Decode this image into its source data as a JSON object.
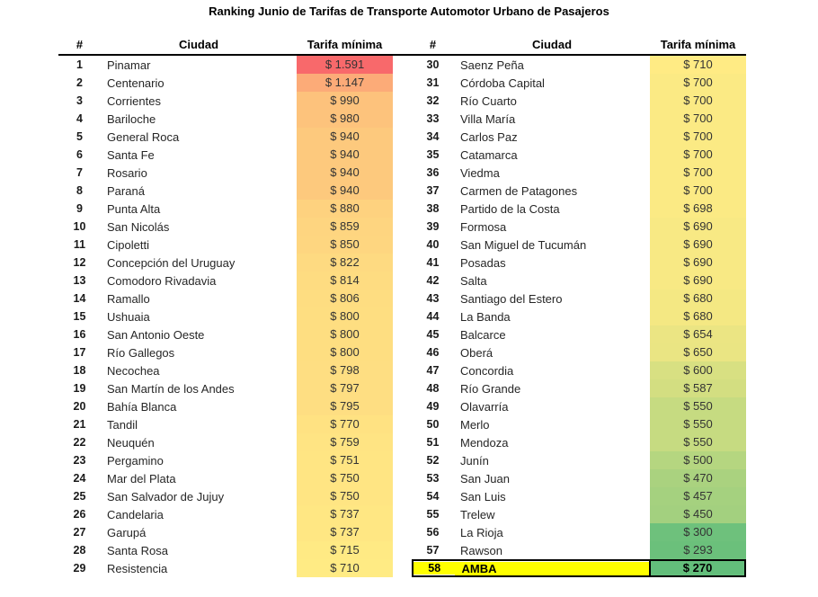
{
  "title": "Ranking Junio de Tarifas de Transporte Automotor Urbano de Pasajeros",
  "chart_data": {
    "type": "table",
    "title": "Ranking Junio de Tarifas de Transporte Automotor Urbano de Pasajeros",
    "columns": [
      "#",
      "Ciudad",
      "Tarifa mínima"
    ],
    "rows_per_column": 29,
    "fare_format": {
      "prefix": "$ ",
      "thousands_separator": "."
    },
    "color_scale": {
      "min_value": 270,
      "mid_value": 710,
      "max_value": 1591,
      "min_color": "#63BE7B",
      "mid_color": "#FFEB84",
      "max_color": "#F8696B"
    },
    "highlight": {
      "rank": 58,
      "city": "AMBA",
      "background": "#FFFF00",
      "border_color": "#000000"
    },
    "rows": [
      {
        "rank": 1,
        "city": "Pinamar",
        "fare": 1591
      },
      {
        "rank": 2,
        "city": "Centenario",
        "fare": 1147
      },
      {
        "rank": 3,
        "city": "Corrientes",
        "fare": 990
      },
      {
        "rank": 4,
        "city": "Bariloche",
        "fare": 980
      },
      {
        "rank": 5,
        "city": "General Roca",
        "fare": 940
      },
      {
        "rank": 6,
        "city": "Santa Fe",
        "fare": 940
      },
      {
        "rank": 7,
        "city": "Rosario",
        "fare": 940
      },
      {
        "rank": 8,
        "city": "Paraná",
        "fare": 940
      },
      {
        "rank": 9,
        "city": "Punta Alta",
        "fare": 880
      },
      {
        "rank": 10,
        "city": "San Nicolás",
        "fare": 859
      },
      {
        "rank": 11,
        "city": "Cipoletti",
        "fare": 850
      },
      {
        "rank": 12,
        "city": "Concepción del Uruguay",
        "fare": 822
      },
      {
        "rank": 13,
        "city": "Comodoro Rivadavia",
        "fare": 814
      },
      {
        "rank": 14,
        "city": "Ramallo",
        "fare": 806
      },
      {
        "rank": 15,
        "city": "Ushuaia",
        "fare": 800
      },
      {
        "rank": 16,
        "city": "San Antonio Oeste",
        "fare": 800
      },
      {
        "rank": 17,
        "city": "Río Gallegos",
        "fare": 800
      },
      {
        "rank": 18,
        "city": "Necochea",
        "fare": 798
      },
      {
        "rank": 19,
        "city": "San Martín de los Andes",
        "fare": 797
      },
      {
        "rank": 20,
        "city": "Bahía Blanca",
        "fare": 795
      },
      {
        "rank": 21,
        "city": "Tandil",
        "fare": 770
      },
      {
        "rank": 22,
        "city": "Neuquén",
        "fare": 759
      },
      {
        "rank": 23,
        "city": "Pergamino",
        "fare": 751
      },
      {
        "rank": 24,
        "city": "Mar del Plata",
        "fare": 750
      },
      {
        "rank": 25,
        "city": "San Salvador de Jujuy",
        "fare": 750
      },
      {
        "rank": 26,
        "city": "Candelaria",
        "fare": 737
      },
      {
        "rank": 27,
        "city": "Garupá",
        "fare": 737
      },
      {
        "rank": 28,
        "city": "Santa Rosa",
        "fare": 715
      },
      {
        "rank": 29,
        "city": "Resistencia",
        "fare": 710
      },
      {
        "rank": 30,
        "city": "Saenz Peña",
        "fare": 710
      },
      {
        "rank": 31,
        "city": "Córdoba Capital",
        "fare": 700
      },
      {
        "rank": 32,
        "city": "Río Cuarto",
        "fare": 700
      },
      {
        "rank": 33,
        "city": "Villa María",
        "fare": 700
      },
      {
        "rank": 34,
        "city": "Carlos Paz",
        "fare": 700
      },
      {
        "rank": 35,
        "city": "Catamarca",
        "fare": 700
      },
      {
        "rank": 36,
        "city": "Viedma",
        "fare": 700
      },
      {
        "rank": 37,
        "city": "Carmen de Patagones",
        "fare": 700
      },
      {
        "rank": 38,
        "city": "Partido de la Costa",
        "fare": 698
      },
      {
        "rank": 39,
        "city": "Formosa",
        "fare": 690
      },
      {
        "rank": 40,
        "city": "San Miguel de Tucumán",
        "fare": 690
      },
      {
        "rank": 41,
        "city": "Posadas",
        "fare": 690
      },
      {
        "rank": 42,
        "city": "Salta",
        "fare": 690
      },
      {
        "rank": 43,
        "city": "Santiago del Estero",
        "fare": 680
      },
      {
        "rank": 44,
        "city": "La Banda",
        "fare": 680
      },
      {
        "rank": 45,
        "city": "Balcarce",
        "fare": 654
      },
      {
        "rank": 46,
        "city": "Oberá",
        "fare": 650
      },
      {
        "rank": 47,
        "city": "Concordia",
        "fare": 600
      },
      {
        "rank": 48,
        "city": "Río Grande",
        "fare": 587
      },
      {
        "rank": 49,
        "city": "Olavarría",
        "fare": 550
      },
      {
        "rank": 50,
        "city": "Merlo",
        "fare": 550
      },
      {
        "rank": 51,
        "city": "Mendoza",
        "fare": 550
      },
      {
        "rank": 52,
        "city": "Junín",
        "fare": 500
      },
      {
        "rank": 53,
        "city": "San Juan",
        "fare": 470
      },
      {
        "rank": 54,
        "city": "San Luis",
        "fare": 457
      },
      {
        "rank": 55,
        "city": "Trelew",
        "fare": 450
      },
      {
        "rank": 56,
        "city": "La Rioja",
        "fare": 300
      },
      {
        "rank": 57,
        "city": "Rawson",
        "fare": 293
      },
      {
        "rank": 58,
        "city": "AMBA",
        "fare": 270
      }
    ]
  }
}
